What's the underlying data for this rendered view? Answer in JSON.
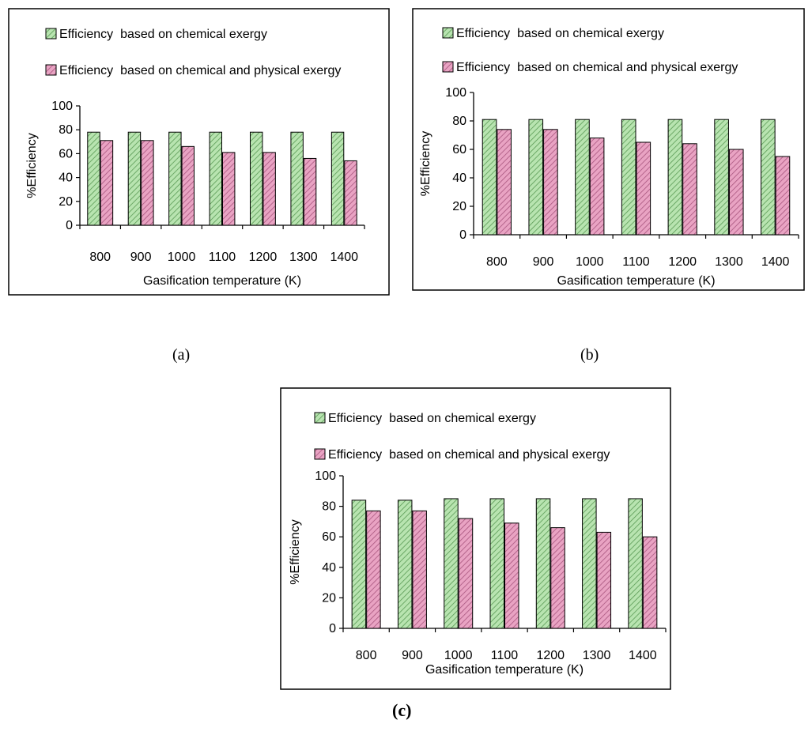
{
  "colors": {
    "chemical_fill": "#b8e4b0",
    "chemical_hatch": "#5a9a55",
    "physical_fill": "#e9a3c3",
    "physical_hatch": "#a8557e",
    "axis": "#000000",
    "frame": "#000000"
  },
  "captions": {
    "a": "(a)",
    "b": "(b)",
    "c": "(c)"
  },
  "chart_data": [
    {
      "panel": "a",
      "type": "bar",
      "xlabel": "Gasification temperature (K)",
      "ylabel": "%Efficiency",
      "ylim": [
        0,
        100
      ],
      "yticks": [
        0,
        20,
        40,
        60,
        80,
        100
      ],
      "legend_position": "top",
      "categories": [
        "800",
        "900",
        "1000",
        "1100",
        "1200",
        "1300",
        "1400"
      ],
      "series": [
        {
          "name": "Efficiency  based on chemical exergy",
          "values": [
            78,
            78,
            78,
            78,
            78,
            78,
            78
          ]
        },
        {
          "name": "Efficiency  based on chemical and physical exergy",
          "values": [
            71,
            71,
            66,
            61,
            61,
            56,
            54
          ]
        }
      ]
    },
    {
      "panel": "b",
      "type": "bar",
      "xlabel": "Gasification temperature (K)",
      "ylabel": "%Efficiency",
      "ylim": [
        0,
        100
      ],
      "yticks": [
        0,
        20,
        40,
        60,
        80,
        100
      ],
      "legend_position": "top",
      "categories": [
        "800",
        "900",
        "1000",
        "1100",
        "1200",
        "1300",
        "1400"
      ],
      "series": [
        {
          "name": "Efficiency  based on chemical exergy",
          "values": [
            81,
            81,
            81,
            81,
            81,
            81,
            81
          ]
        },
        {
          "name": "Efficiency  based on chemical and physical exergy",
          "values": [
            74,
            74,
            68,
            65,
            64,
            60,
            55
          ]
        }
      ]
    },
    {
      "panel": "c",
      "type": "bar",
      "xlabel": "Gasification temperature (K)",
      "ylabel": "%Efficiency",
      "ylim": [
        0,
        100
      ],
      "yticks": [
        0,
        20,
        40,
        60,
        80,
        100
      ],
      "legend_position": "top",
      "categories": [
        "800",
        "900",
        "1000",
        "1100",
        "1200",
        "1300",
        "1400"
      ],
      "series": [
        {
          "name": "Efficiency  based on chemical exergy",
          "values": [
            84,
            84,
            85,
            85,
            85,
            85,
            85
          ]
        },
        {
          "name": "Efficiency  based on chemical and physical exergy",
          "values": [
            77,
            77,
            72,
            69,
            66,
            63,
            60
          ]
        }
      ]
    }
  ]
}
